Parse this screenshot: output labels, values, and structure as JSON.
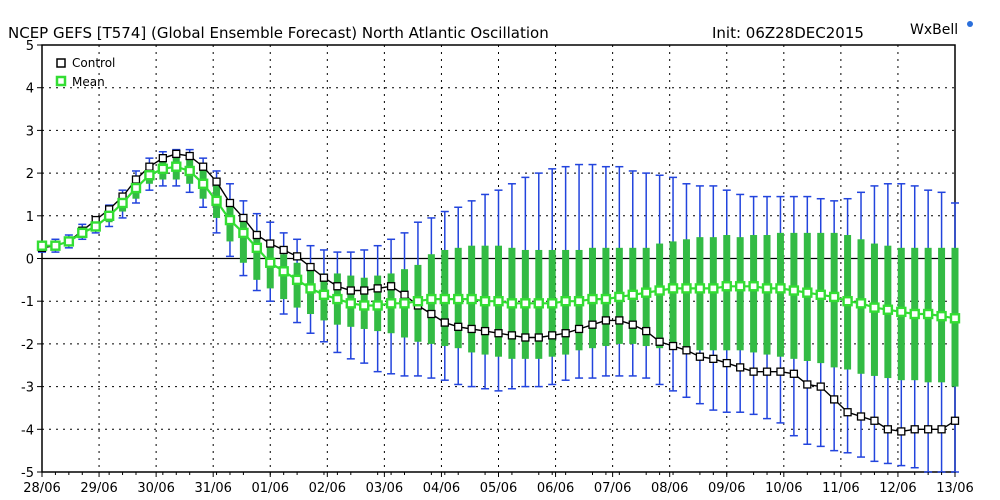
{
  "title": "NCEP GEFS [T574] (Global Ensemble Forecast) North Atlantic Oscillation",
  "init": "Init: 06Z28DEC2015",
  "brand": "WxBell",
  "colors": {
    "control": "#000000",
    "mean": "#33dd33",
    "spread_bar": "#33bb44",
    "whisker": "#2244dd",
    "brand_dot": "#2a6fdb",
    "zero_line": "#000000",
    "grid": "#000000"
  },
  "chart_data": {
    "type": "line",
    "title": "NCEP GEFS [T574] (Global Ensemble Forecast) North Atlantic Oscillation",
    "ylim": [
      -5,
      5
    ],
    "yticks": [
      5,
      4,
      3,
      2,
      1,
      0,
      -1,
      -2,
      -3,
      -4,
      -5
    ],
    "grid": true,
    "legend_position": "top-left",
    "x_tick_labels": [
      "28/06",
      "29/06",
      "30/06",
      "31/06",
      "01/06",
      "02/06",
      "03/06",
      "04/06",
      "05/06",
      "06/06",
      "07/06",
      "08/06",
      "09/06",
      "10/06",
      "11/06",
      "12/06",
      "13/06"
    ],
    "time_step": "6-hourly",
    "series": [
      {
        "name": "Control",
        "values": [
          0.25,
          0.3,
          0.4,
          0.65,
          0.9,
          1.15,
          1.45,
          1.85,
          2.15,
          2.35,
          2.45,
          2.4,
          2.15,
          1.8,
          1.3,
          0.95,
          0.55,
          0.35,
          0.2,
          0.05,
          -0.2,
          -0.45,
          -0.65,
          -0.75,
          -0.75,
          -0.7,
          -0.65,
          -0.85,
          -1.1,
          -1.3,
          -1.5,
          -1.6,
          -1.65,
          -1.7,
          -1.75,
          -1.8,
          -1.85,
          -1.85,
          -1.8,
          -1.75,
          -1.65,
          -1.55,
          -1.45,
          -1.45,
          -1.55,
          -1.7,
          -1.95,
          -2.05,
          -2.15,
          -2.3,
          -2.35,
          -2.45,
          -2.55,
          -2.65,
          -2.65,
          -2.65,
          -2.7,
          -2.95,
          -3.0,
          -3.3,
          -3.6,
          -3.7,
          -3.8,
          -4.0,
          -4.05,
          -4.0,
          -4.0,
          -4.0,
          -3.8
        ]
      },
      {
        "name": "Mean",
        "values": [
          0.3,
          0.3,
          0.4,
          0.6,
          0.75,
          1.0,
          1.3,
          1.65,
          1.95,
          2.1,
          2.15,
          2.05,
          1.75,
          1.35,
          0.9,
          0.6,
          0.25,
          -0.1,
          -0.3,
          -0.5,
          -0.7,
          -0.85,
          -0.95,
          -1.05,
          -1.1,
          -1.1,
          -1.05,
          -1.05,
          -1.0,
          -0.95,
          -0.95,
          -0.95,
          -0.95,
          -1.0,
          -1.0,
          -1.05,
          -1.05,
          -1.05,
          -1.05,
          -1.0,
          -1.0,
          -0.95,
          -0.95,
          -0.9,
          -0.85,
          -0.8,
          -0.75,
          -0.7,
          -0.7,
          -0.7,
          -0.7,
          -0.65,
          -0.65,
          -0.65,
          -0.7,
          -0.7,
          -0.75,
          -0.8,
          -0.85,
          -0.9,
          -1.0,
          -1.05,
          -1.15,
          -1.2,
          -1.25,
          -1.3,
          -1.3,
          -1.35,
          -1.4
        ]
      }
    ],
    "spread_low": [
      0.2,
      0.2,
      0.3,
      0.5,
      0.65,
      0.85,
      1.1,
      1.4,
      1.75,
      1.85,
      1.85,
      1.75,
      1.4,
      0.95,
      0.4,
      -0.1,
      -0.5,
      -0.7,
      -0.95,
      -1.15,
      -1.3,
      -1.45,
      -1.55,
      -1.6,
      -1.65,
      -1.7,
      -1.75,
      -1.85,
      -1.95,
      -2.0,
      -2.05,
      -2.1,
      -2.2,
      -2.25,
      -2.3,
      -2.35,
      -2.35,
      -2.35,
      -2.3,
      -2.25,
      -2.15,
      -2.1,
      -2.05,
      -2.0,
      -2.0,
      -2.05,
      -2.1,
      -2.1,
      -2.15,
      -2.15,
      -2.15,
      -2.15,
      -2.15,
      -2.2,
      -2.25,
      -2.3,
      -2.35,
      -2.4,
      -2.45,
      -2.55,
      -2.6,
      -2.7,
      -2.75,
      -2.8,
      -2.85,
      -2.85,
      -2.9,
      -2.9,
      -3.0
    ],
    "spread_high": [
      0.35,
      0.4,
      0.5,
      0.75,
      0.9,
      1.15,
      1.45,
      1.9,
      2.2,
      2.35,
      2.4,
      2.35,
      2.1,
      1.75,
      1.3,
      1.0,
      0.65,
      0.35,
      0.1,
      -0.1,
      -0.25,
      -0.35,
      -0.35,
      -0.4,
      -0.45,
      -0.4,
      -0.35,
      -0.25,
      -0.15,
      0.1,
      0.2,
      0.25,
      0.3,
      0.3,
      0.3,
      0.25,
      0.2,
      0.2,
      0.2,
      0.2,
      0.2,
      0.25,
      0.25,
      0.25,
      0.25,
      0.25,
      0.35,
      0.4,
      0.45,
      0.5,
      0.5,
      0.55,
      0.5,
      0.55,
      0.55,
      0.6,
      0.6,
      0.6,
      0.6,
      0.6,
      0.55,
      0.45,
      0.35,
      0.3,
      0.25,
      0.25,
      0.25,
      0.25,
      0.25
    ],
    "whisker_low": [
      0.15,
      0.15,
      0.25,
      0.45,
      0.6,
      0.75,
      0.95,
      1.3,
      1.6,
      1.7,
      1.7,
      1.55,
      1.2,
      0.6,
      0.05,
      -0.4,
      -0.75,
      -1.0,
      -1.3,
      -1.5,
      -1.75,
      -1.95,
      -2.2,
      -2.35,
      -2.45,
      -2.65,
      -2.7,
      -2.75,
      -2.75,
      -2.8,
      -2.85,
      -2.95,
      -3.0,
      -3.05,
      -3.1,
      -3.05,
      -3.0,
      -3.0,
      -2.95,
      -2.85,
      -2.8,
      -2.8,
      -2.75,
      -2.75,
      -2.75,
      -2.8,
      -2.95,
      -3.1,
      -3.25,
      -3.4,
      -3.55,
      -3.6,
      -3.6,
      -3.65,
      -3.75,
      -3.85,
      -4.15,
      -4.35,
      -4.4,
      -4.5,
      -4.55,
      -4.65,
      -4.75,
      -4.8,
      -4.85,
      -4.9,
      -5.0,
      -5.0,
      -5.0
    ],
    "whisker_high": [
      0.4,
      0.45,
      0.55,
      0.8,
      0.95,
      1.25,
      1.6,
      2.05,
      2.35,
      2.5,
      2.55,
      2.55,
      2.35,
      2.05,
      1.75,
      1.35,
      1.05,
      0.85,
      0.6,
      0.45,
      0.3,
      0.2,
      0.15,
      0.15,
      0.2,
      0.3,
      0.45,
      0.6,
      0.85,
      0.95,
      1.1,
      1.2,
      1.35,
      1.5,
      1.6,
      1.75,
      1.9,
      2.0,
      2.1,
      2.15,
      2.2,
      2.2,
      2.15,
      2.15,
      2.05,
      2.0,
      1.95,
      1.9,
      1.75,
      1.7,
      1.7,
      1.6,
      1.5,
      1.45,
      1.45,
      1.45,
      1.45,
      1.45,
      1.4,
      1.35,
      1.4,
      1.55,
      1.7,
      1.75,
      1.75,
      1.7,
      1.6,
      1.55,
      1.3
    ]
  }
}
